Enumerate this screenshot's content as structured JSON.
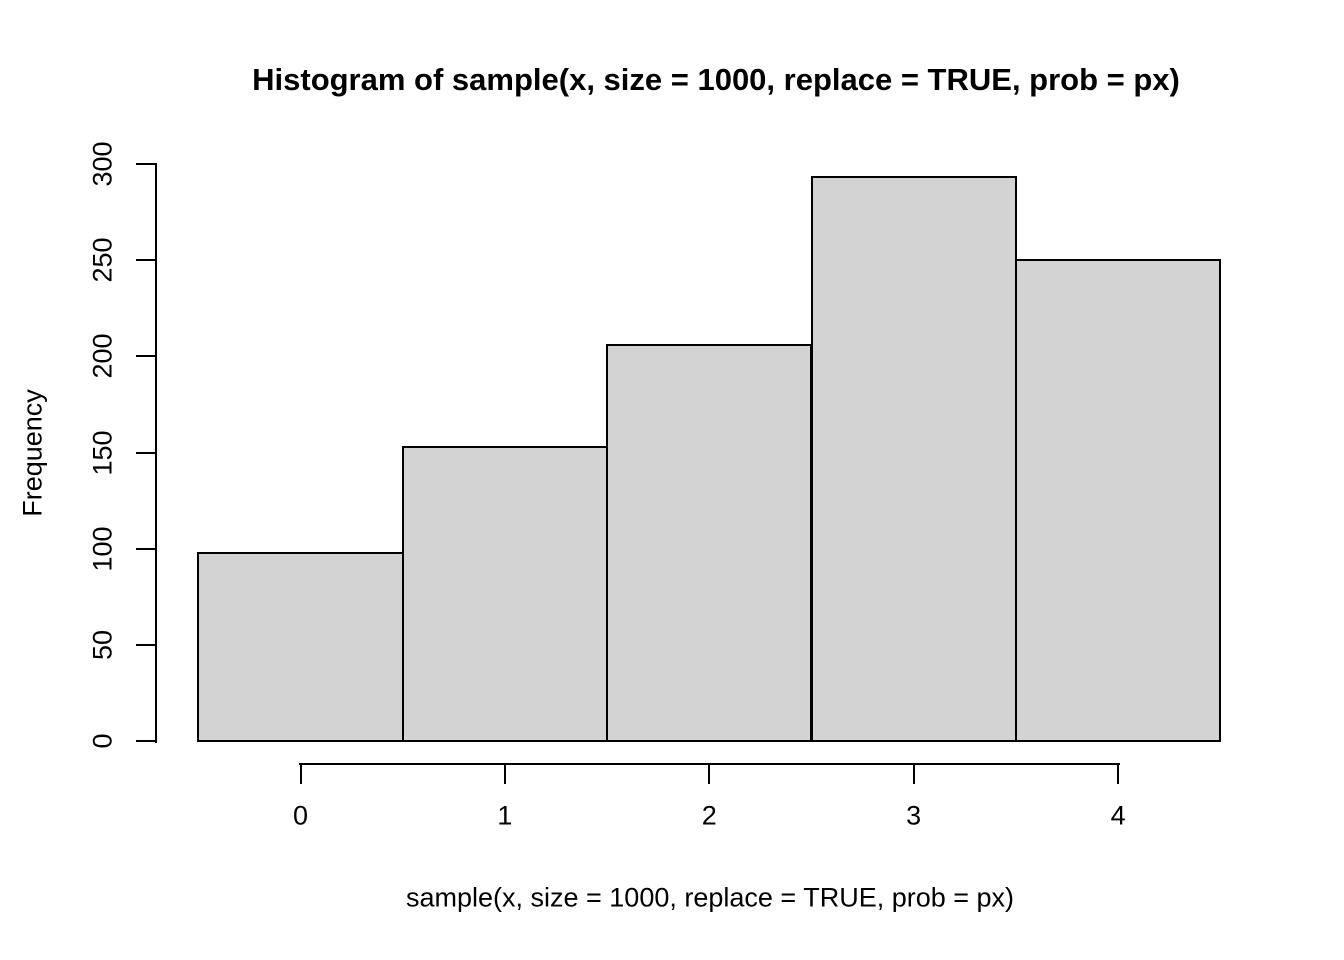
{
  "chart_data": {
    "type": "bar",
    "variant": "histogram",
    "title": "Histogram of sample(x, size = 1000, replace = TRUE, prob = px)",
    "xlabel": "sample(x, size = 1000, replace = TRUE, prob = px)",
    "ylabel": "Frequency",
    "categories": [
      0,
      1,
      2,
      3,
      4
    ],
    "values": [
      98,
      153,
      206,
      293,
      250
    ],
    "bin_breaks": [
      -0.5,
      0.5,
      1.5,
      2.5,
      3.5,
      4.5
    ],
    "x_ticks": [
      0,
      1,
      2,
      3,
      4
    ],
    "x_tick_labels": [
      "0",
      "1",
      "2",
      "3",
      "4"
    ],
    "y_ticks": [
      0,
      50,
      100,
      150,
      200,
      250,
      300
    ],
    "y_tick_labels": [
      "0",
      "50",
      "100",
      "150",
      "200",
      "250",
      "300"
    ],
    "xlim": [
      -0.5,
      4.5
    ],
    "ylim": [
      0,
      300
    ],
    "grid": false,
    "legend": "none",
    "colors": {
      "bar_fill": "#d3d3d3",
      "bar_border": "#000000",
      "axis": "#000000",
      "text": "#000000",
      "background": "#ffffff"
    }
  }
}
